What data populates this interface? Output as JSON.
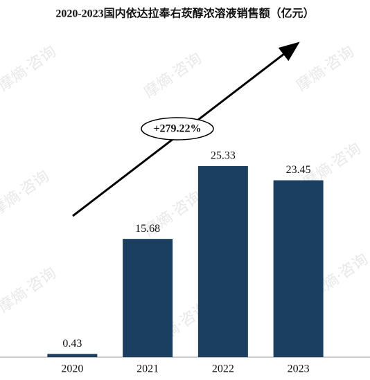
{
  "chart_data": {
    "type": "bar",
    "title": "2020-2023国内依达拉奉右莰醇浓溶液销售额（亿元）",
    "categories": [
      "2020",
      "2021",
      "2022",
      "2023"
    ],
    "values": [
      0.43,
      15.68,
      25.33,
      23.45
    ],
    "color": "#1b3f5f",
    "annotation": "+279.22%",
    "watermark": "摩熵·咨询"
  }
}
